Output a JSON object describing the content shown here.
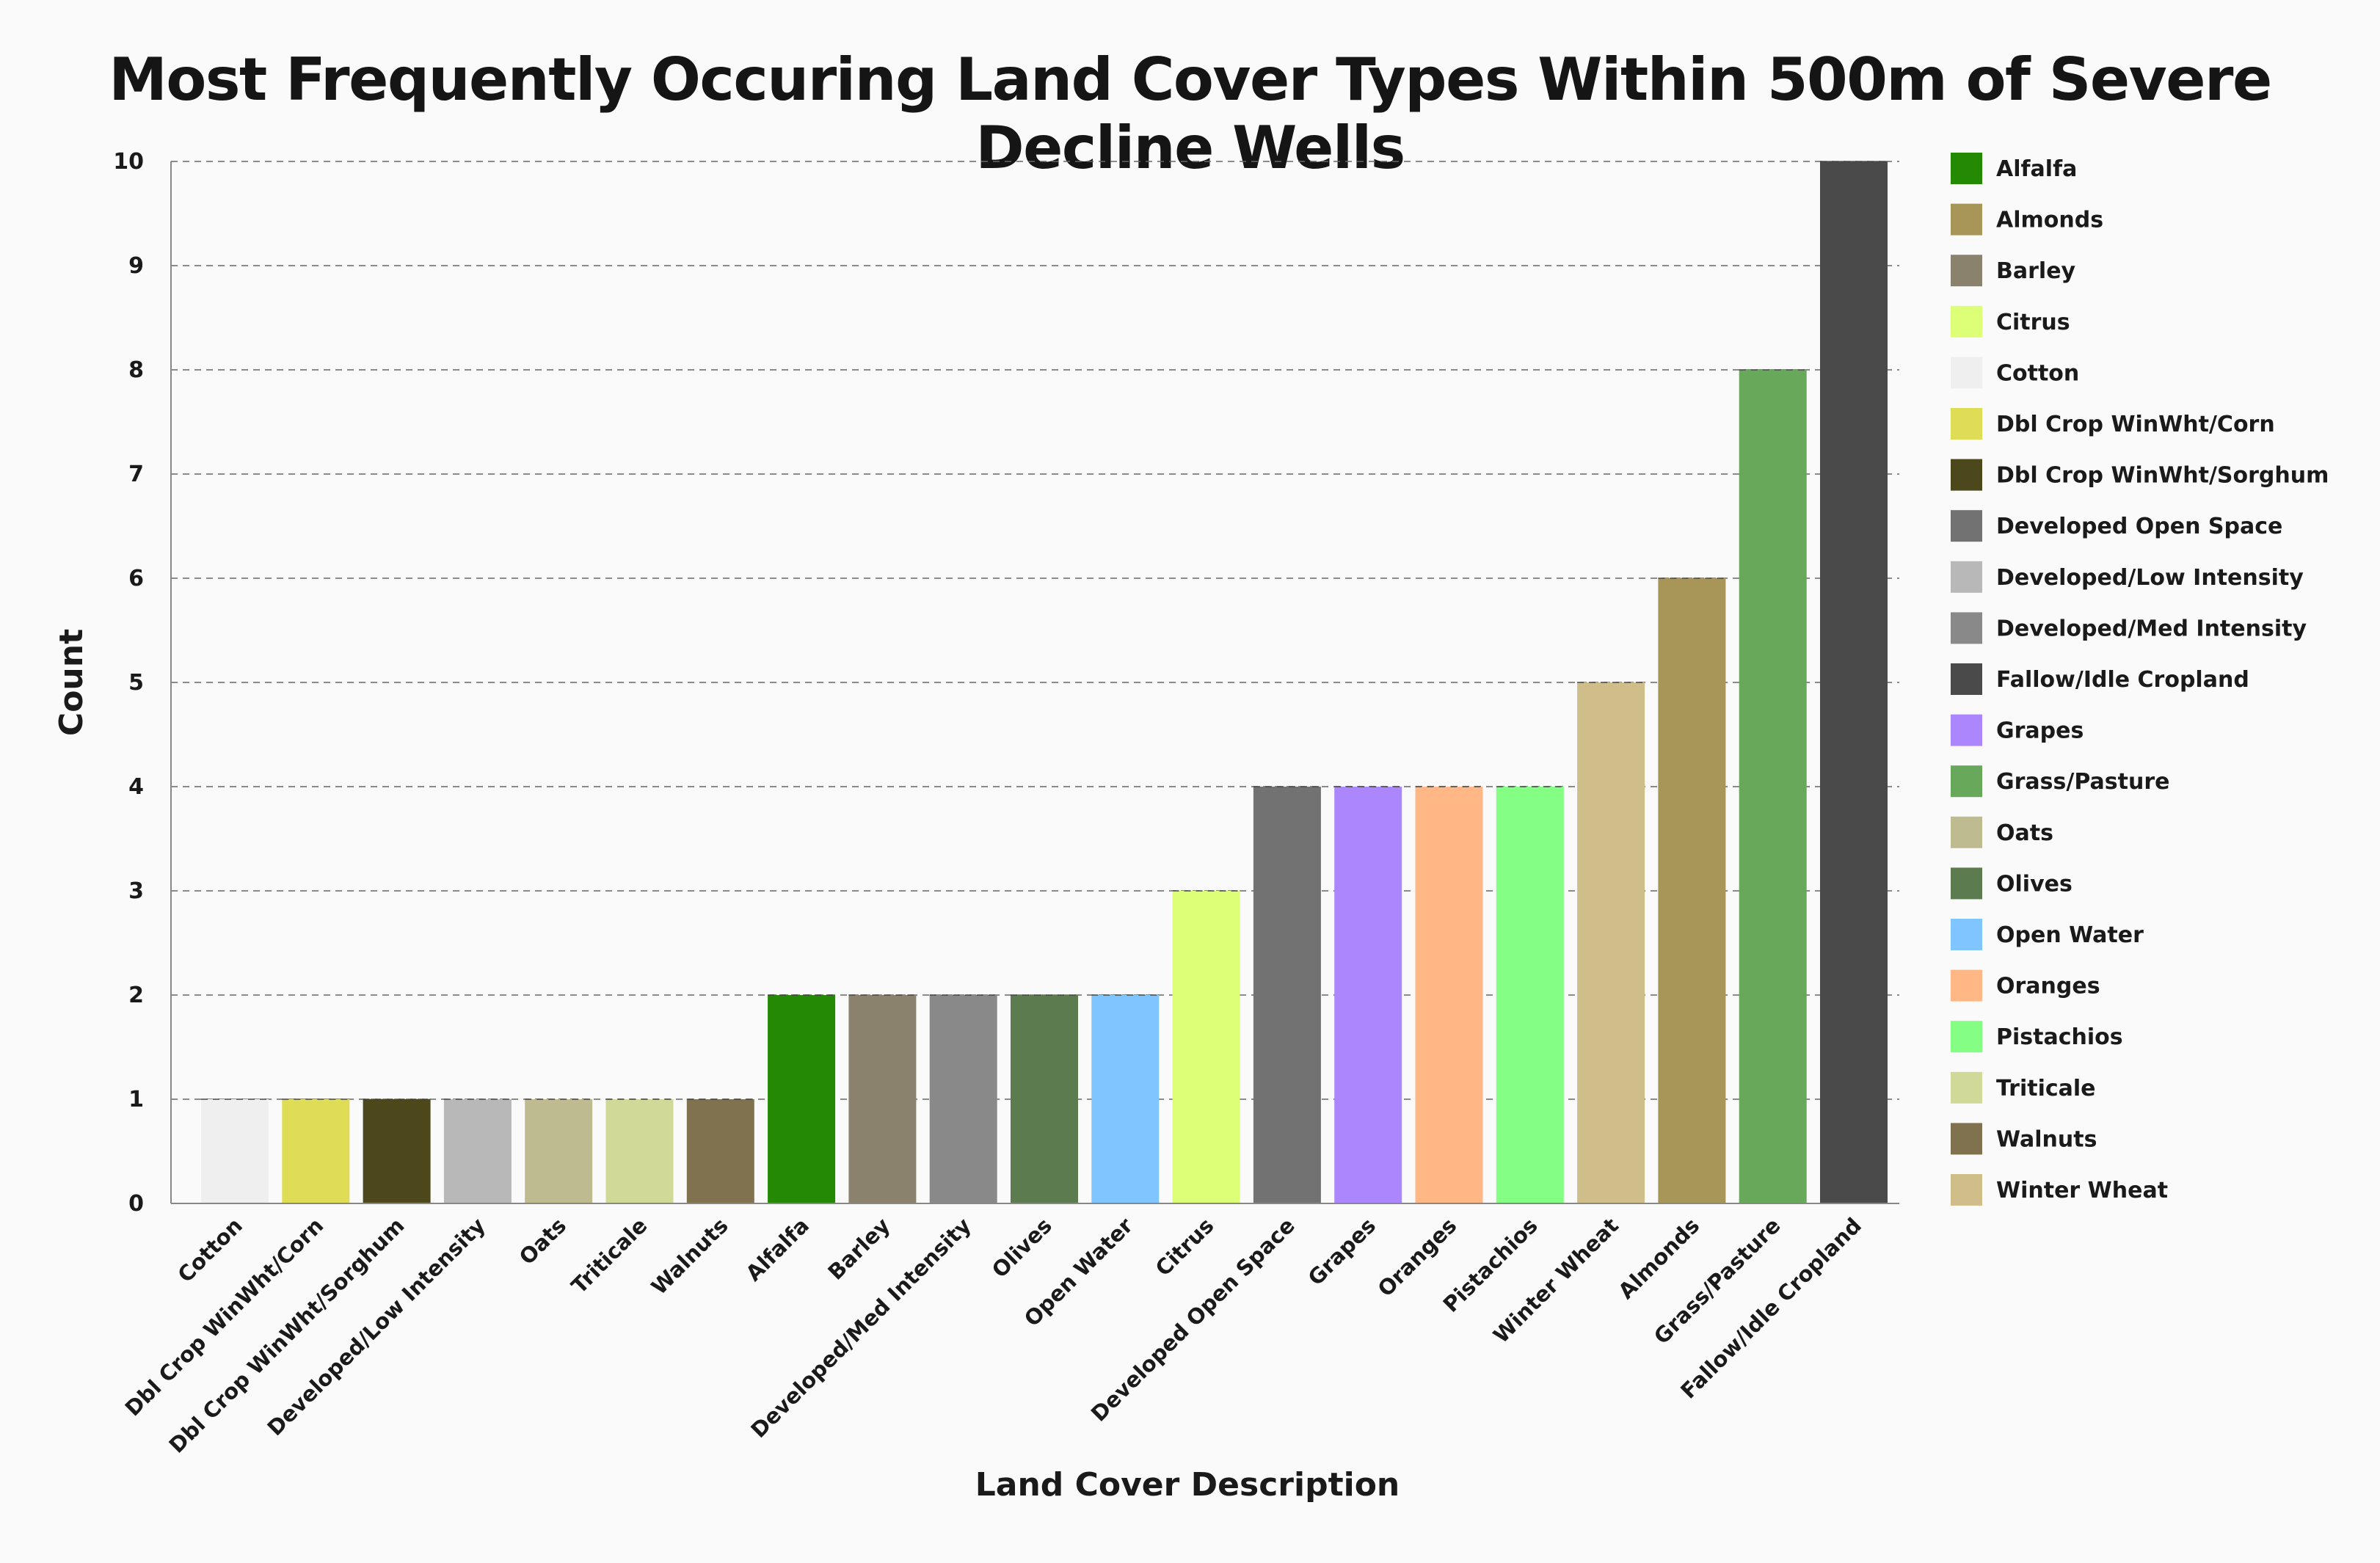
{
  "chart_data": {
    "type": "bar",
    "title": "Most Frequently Occuring Land Cover Types Within 500m of Severe Decline Wells",
    "xlabel": "Land Cover Description",
    "ylabel": "Count",
    "ylim": [
      0,
      10
    ],
    "yticks": [
      "0",
      "1",
      "2",
      "3",
      "4",
      "5",
      "6",
      "7",
      "8",
      "9",
      "10"
    ],
    "grid": true,
    "legend_placement": "right",
    "categories": [
      "Cotton",
      "Dbl Crop WinWht/Corn",
      "Dbl Crop WinWht/Sorghum",
      "Developed/Low Intensity",
      "Oats",
      "Triticale",
      "Walnuts",
      "Alfalfa",
      "Barley",
      "Developed/Med Intensity",
      "Olives",
      "Open Water",
      "Citrus",
      "Developed Open Space",
      "Grapes",
      "Oranges",
      "Pistachios",
      "Winter Wheat",
      "Almonds",
      "Grass/Pasture",
      "Fallow/Idle Cropland"
    ],
    "values": [
      1,
      1,
      1,
      1,
      1,
      1,
      1,
      2,
      2,
      2,
      2,
      2,
      3,
      4,
      4,
      4,
      4,
      5,
      6,
      8,
      10
    ],
    "colors": [
      "#efefef",
      "#dedd55",
      "#4d471c",
      "#b8b8b8",
      "#bdbb8f",
      "#d1d998",
      "#80724f",
      "#248a04",
      "#8a826d",
      "#898989",
      "#5c7b4e",
      "#80c5ff",
      "#ddff78",
      "#727272",
      "#ab86fc",
      "#ffb885",
      "#84ff84",
      "#cfbe8a",
      "#a89659",
      "#67a85b",
      "#4a4a4a"
    ],
    "legend": [
      {
        "name": "Alfalfa",
        "color": "#248a04"
      },
      {
        "name": "Almonds",
        "color": "#a89659"
      },
      {
        "name": "Barley",
        "color": "#8a826d"
      },
      {
        "name": "Citrus",
        "color": "#ddff78"
      },
      {
        "name": "Cotton",
        "color": "#efefef"
      },
      {
        "name": "Dbl Crop WinWht/Corn",
        "color": "#dedd55"
      },
      {
        "name": "Dbl Crop WinWht/Sorghum",
        "color": "#4d471c"
      },
      {
        "name": "Developed Open Space",
        "color": "#727272"
      },
      {
        "name": "Developed/Low Intensity",
        "color": "#b8b8b8"
      },
      {
        "name": "Developed/Med Intensity",
        "color": "#898989"
      },
      {
        "name": "Fallow/Idle Cropland",
        "color": "#4a4a4a"
      },
      {
        "name": "Grapes",
        "color": "#ab86fc"
      },
      {
        "name": "Grass/Pasture",
        "color": "#67a85b"
      },
      {
        "name": "Oats",
        "color": "#bdbb8f"
      },
      {
        "name": "Olives",
        "color": "#5c7b4e"
      },
      {
        "name": "Open Water",
        "color": "#80c5ff"
      },
      {
        "name": "Oranges",
        "color": "#ffb885"
      },
      {
        "name": "Pistachios",
        "color": "#84ff84"
      },
      {
        "name": "Triticale",
        "color": "#d1d998"
      },
      {
        "name": "Walnuts",
        "color": "#80724f"
      },
      {
        "name": "Winter Wheat",
        "color": "#cfbe8a"
      }
    ]
  }
}
